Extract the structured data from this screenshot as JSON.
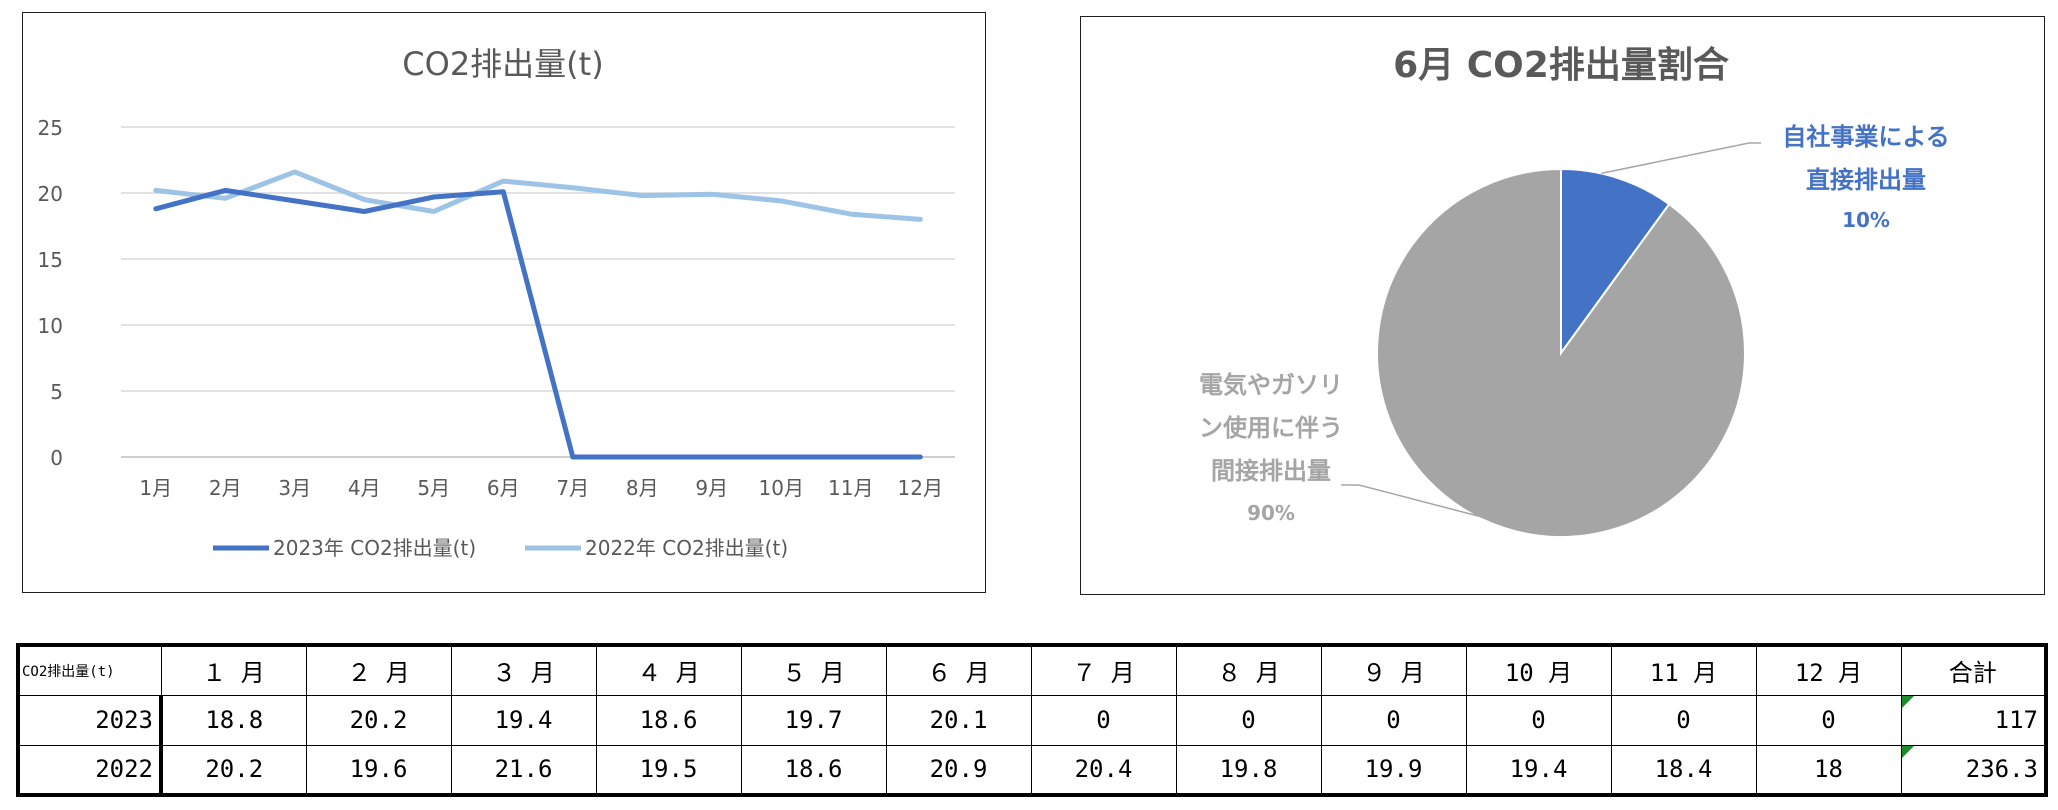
{
  "chart_data": [
    {
      "type": "line",
      "title": "CO2排出量(t)",
      "categories": [
        "1月",
        "2月",
        "3月",
        "4月",
        "5月",
        "6月",
        "7月",
        "8月",
        "9月",
        "10月",
        "11月",
        "12月"
      ],
      "series": [
        {
          "name": "2023年 CO2排出量(t)",
          "values": [
            18.8,
            20.2,
            19.4,
            18.6,
            19.7,
            20.1,
            0,
            0,
            0,
            0,
            0,
            0
          ],
          "color": "#4472c4"
        },
        {
          "name": "2022年 CO2排出量(t)",
          "values": [
            20.2,
            19.6,
            21.6,
            19.5,
            18.6,
            20.9,
            20.4,
            19.8,
            19.9,
            19.4,
            18.4,
            18
          ],
          "color": "#9dc3e6"
        }
      ],
      "ylim": [
        0,
        25
      ],
      "yticks": [
        0,
        5,
        10,
        15,
        20,
        25
      ],
      "grid": true,
      "legend": "bottom"
    },
    {
      "type": "pie",
      "title": "6月 CO2排出量割合",
      "slices": [
        {
          "label": "自社事業による直接排出量",
          "label_lines": [
            "自社事業による",
            "直接排出量"
          ],
          "percent_label": "10%",
          "value": 10,
          "color": "#4472c4"
        },
        {
          "label": "電気やガソリン使用に伴う間接排出量",
          "label_lines": [
            "電気やガソリ",
            "ン使用に伴う",
            "間接排出量"
          ],
          "percent_label": "90%",
          "value": 90,
          "color": "#a5a5a5"
        }
      ],
      "legend": "none"
    }
  ],
  "table": {
    "corner": "CO2排出量(t)",
    "headers": [
      "１ 月",
      "２ 月",
      "３ 月",
      "４ 月",
      "５ 月",
      "６ 月",
      "７ 月",
      "８ 月",
      "９ 月",
      "10 月",
      "11 月",
      "12 月",
      "合計"
    ],
    "rows": [
      {
        "year": "2023",
        "values": [
          "18.8",
          "20.2",
          "19.4",
          "18.6",
          "19.7",
          "20.1",
          "0",
          "0",
          "0",
          "0",
          "0",
          "0"
        ],
        "total": "117"
      },
      {
        "year": "2022",
        "values": [
          "20.2",
          "19.6",
          "21.6",
          "19.5",
          "18.6",
          "20.9",
          "20.4",
          "19.8",
          "19.9",
          "19.4",
          "18.4",
          "18"
        ],
        "total": "236.3"
      }
    ]
  }
}
